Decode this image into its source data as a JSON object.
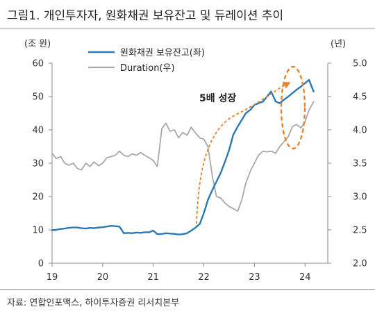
{
  "figure_title": "그림1.  개인투자자, 원화채권 보유잔고 및 듀레이션 추이",
  "source_note": "자료: 연합인포맥스, 하이투자증권 리서치본부",
  "colors": {
    "holdings": "#2a79b6",
    "duration": "#a8a8a8",
    "annotation": "#e8822a",
    "axis": "#8a8a8a"
  },
  "chart_data": {
    "type": "line",
    "left_axis_unit": "(조 원)",
    "right_axis_unit": "(년)",
    "left_ylim": [
      0,
      60
    ],
    "right_ylim": [
      2.0,
      5.0
    ],
    "left_ticks": [
      "0",
      "10",
      "20",
      "30",
      "40",
      "50",
      "60"
    ],
    "right_ticks": [
      "2.0",
      "2.5",
      "3.0",
      "3.5",
      "4.0",
      "4.5",
      "5.0"
    ],
    "x_ticks": [
      "19",
      "20",
      "21",
      "22",
      "23",
      "24"
    ],
    "x_tick_values": [
      2019,
      2020,
      2021,
      2022,
      2023,
      2024
    ],
    "xlim": [
      2019.0,
      2024.45
    ],
    "grid": false,
    "legend_position": "top-left",
    "series": [
      {
        "name": "원화채권 보유잔고(좌)",
        "axis": "left",
        "x": [
          2019.0,
          2019.08,
          2019.17,
          2019.25,
          2019.33,
          2019.42,
          2019.5,
          2019.58,
          2019.67,
          2019.75,
          2019.83,
          2019.92,
          2020.0,
          2020.08,
          2020.17,
          2020.25,
          2020.33,
          2020.42,
          2020.5,
          2020.58,
          2020.67,
          2020.75,
          2020.83,
          2020.92,
          2021.0,
          2021.08,
          2021.17,
          2021.25,
          2021.33,
          2021.42,
          2021.5,
          2021.58,
          2021.67,
          2021.75,
          2021.83,
          2021.92,
          2022.0,
          2022.08,
          2022.17,
          2022.25,
          2022.33,
          2022.42,
          2022.5,
          2022.58,
          2022.67,
          2022.75,
          2022.83,
          2022.92,
          2023.0,
          2023.08,
          2023.17,
          2023.25,
          2023.33,
          2023.42,
          2023.5,
          2023.58,
          2023.67,
          2023.75,
          2023.83,
          2023.92,
          2024.0,
          2024.08,
          2024.17
        ],
        "values": [
          9.9,
          10.0,
          10.3,
          10.4,
          10.6,
          10.7,
          10.7,
          10.5,
          10.4,
          10.6,
          10.5,
          10.7,
          10.8,
          11.0,
          11.2,
          11.1,
          11.0,
          9.0,
          9.1,
          9.0,
          9.2,
          9.1,
          9.3,
          9.3,
          9.8,
          8.7,
          8.8,
          9.0,
          8.9,
          8.8,
          8.6,
          8.7,
          9.0,
          9.8,
          10.6,
          11.8,
          15.0,
          19.0,
          22.0,
          24.5,
          27.0,
          30.5,
          34.0,
          38.5,
          41.0,
          43.0,
          45.0,
          46.0,
          47.5,
          48.0,
          48.5,
          50.0,
          51.5,
          48.5,
          48.0,
          49.0,
          50.0,
          51.0,
          52.0,
          53.0,
          54.0,
          55.0,
          51.5
        ]
      },
      {
        "name": "Duration(우)",
        "axis": "right",
        "x": [
          2019.0,
          2019.08,
          2019.17,
          2019.25,
          2019.33,
          2019.42,
          2019.5,
          2019.58,
          2019.67,
          2019.75,
          2019.83,
          2019.92,
          2020.0,
          2020.08,
          2020.17,
          2020.25,
          2020.33,
          2020.42,
          2020.5,
          2020.58,
          2020.67,
          2020.75,
          2020.83,
          2020.92,
          2021.0,
          2021.08,
          2021.17,
          2021.25,
          2021.33,
          2021.42,
          2021.5,
          2021.58,
          2021.67,
          2021.75,
          2021.83,
          2021.92,
          2022.0,
          2022.08,
          2022.17,
          2022.25,
          2022.33,
          2022.42,
          2022.5,
          2022.58,
          2022.67,
          2022.75,
          2022.83,
          2022.92,
          2023.0,
          2023.08,
          2023.17,
          2023.25,
          2023.33,
          2023.42,
          2023.5,
          2023.58,
          2023.67,
          2023.75,
          2023.83,
          2023.92,
          2024.0,
          2024.08,
          2024.17
        ],
        "values": [
          3.65,
          3.57,
          3.6,
          3.5,
          3.47,
          3.5,
          3.42,
          3.4,
          3.5,
          3.45,
          3.52,
          3.46,
          3.5,
          3.58,
          3.6,
          3.62,
          3.68,
          3.62,
          3.6,
          3.64,
          3.62,
          3.66,
          3.62,
          3.58,
          3.54,
          3.45,
          4.02,
          4.1,
          3.98,
          4.0,
          3.88,
          3.96,
          3.92,
          4.04,
          3.96,
          3.88,
          3.86,
          3.75,
          3.3,
          3.0,
          2.98,
          2.9,
          2.85,
          2.82,
          2.78,
          2.95,
          3.2,
          3.38,
          3.5,
          3.62,
          3.68,
          3.67,
          3.68,
          3.65,
          3.75,
          3.82,
          3.9,
          4.05,
          4.08,
          4.03,
          4.12,
          4.3,
          4.42
        ]
      }
    ],
    "annotation": "5배 성장"
  }
}
